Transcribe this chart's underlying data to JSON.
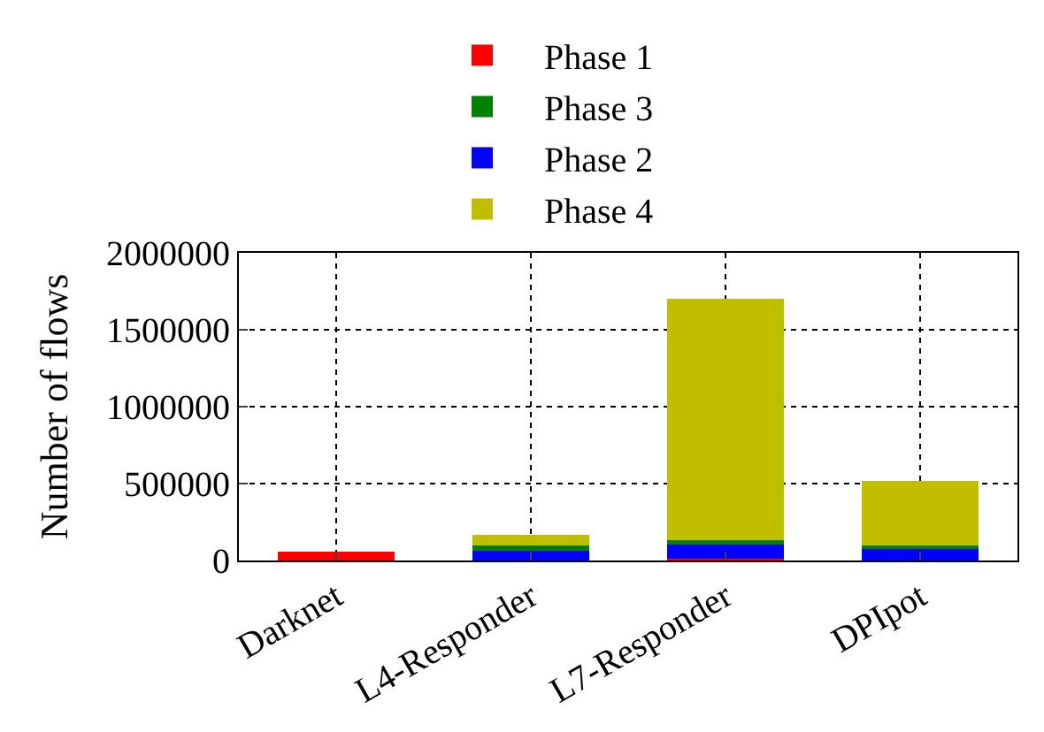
{
  "chart_data": {
    "type": "bar",
    "stacked": true,
    "ylabel": "Number of flows",
    "categories": [
      "Darknet",
      "L4-Responder",
      "L7-Responder",
      "DPIpot"
    ],
    "series": [
      {
        "name": "Phase 1",
        "color": "#ff0000",
        "values": [
          60000,
          0,
          10000,
          0
        ]
      },
      {
        "name": "Phase 2",
        "color": "#0000ff",
        "values": [
          0,
          66000,
          96000,
          72000
        ]
      },
      {
        "name": "Phase 3",
        "color": "#008000",
        "values": [
          0,
          29000,
          26000,
          23000
        ]
      },
      {
        "name": "Phase 4",
        "color": "#bfbf00",
        "values": [
          0,
          69000,
          1568000,
          425000
        ]
      }
    ],
    "ylim": [
      0,
      2000000
    ],
    "yticks": [
      0,
      500000,
      1000000,
      1500000,
      2000000
    ],
    "grid": true,
    "legend": "top"
  }
}
